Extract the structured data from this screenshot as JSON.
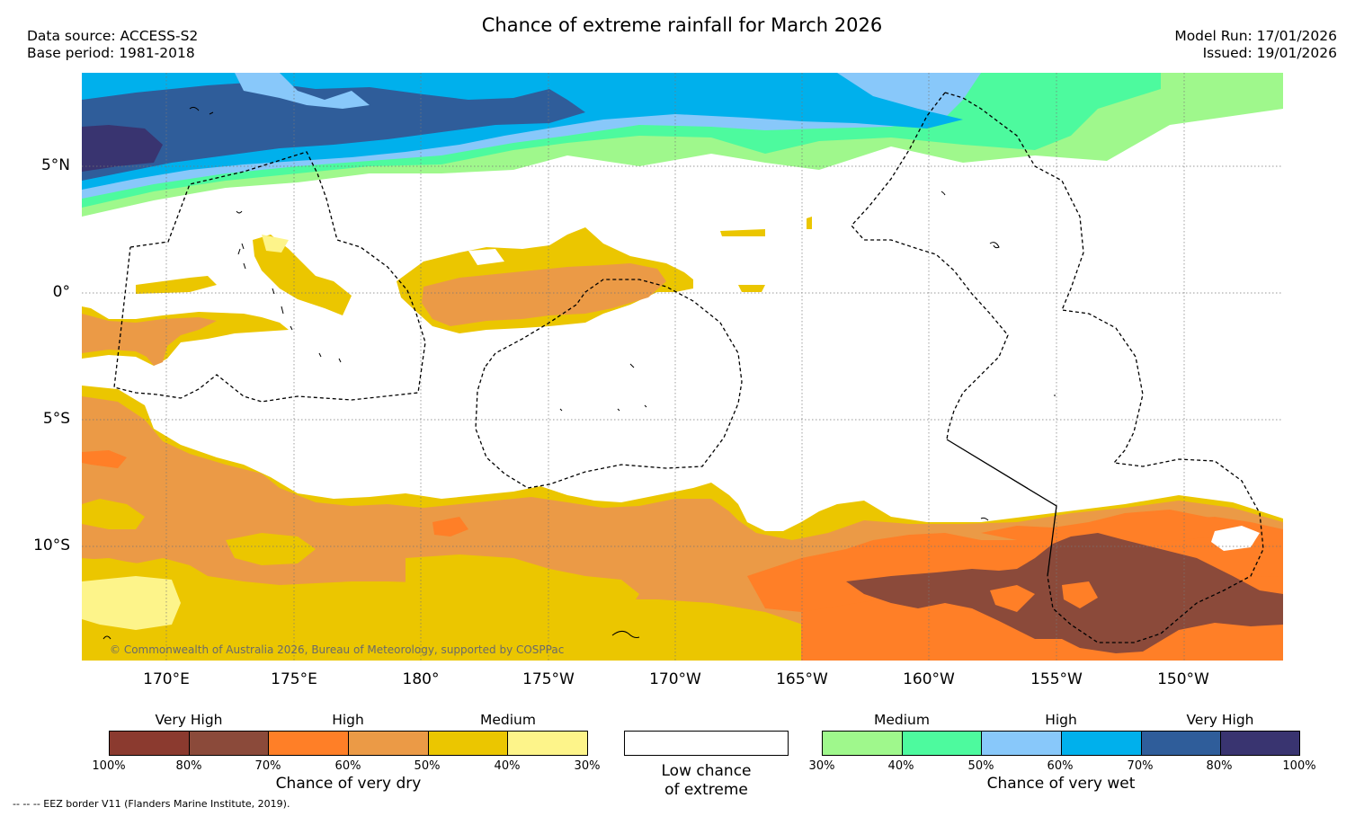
{
  "header": {
    "title": "Chance of extreme rainfall for March 2026",
    "data_source": "Data source: ACCESS-S2",
    "base_period": "Base period: 1981-2018",
    "model_run": "Model Run: 17/01/2026",
    "issued": "Issued: 19/01/2026"
  },
  "map": {
    "lat_labels": [
      "5°N",
      "0°",
      "5°S",
      "10°S"
    ],
    "lon_labels": [
      "170°E",
      "175°E",
      "180°",
      "175°W",
      "170°W",
      "165°W",
      "160°W",
      "155°W",
      "150°W"
    ],
    "copyright": "© Commonwealth of Australia 2026, Bureau of Meteorology, supported by COSPPac",
    "colors": {
      "dry_100_80": "#8b3a2f",
      "dry_80_70": "#8b4a3a",
      "dry_70_60": "#ff7f27",
      "dry_60_50": "#eb9a46",
      "dry_50_40": "#ebc600",
      "dry_40_30": "#fdf48a",
      "wet_30_40": "#9ff88c",
      "wet_40_50": "#4dfa9e",
      "wet_50_60": "#88c8fa",
      "wet_60_70": "#00b0ec",
      "wet_70_80": "#2f5d9a",
      "wet_80_100": "#393470"
    }
  },
  "legend": {
    "dry": {
      "categories": [
        "Very High",
        "High",
        "Medium"
      ],
      "ticks": [
        "100%",
        "80%",
        "70%",
        "60%",
        "50%",
        "40%",
        "30%"
      ],
      "title": "Chance of very dry",
      "colors": [
        "#8b3a2f",
        "#8b4a3a",
        "#ff7f27",
        "#eb9a46",
        "#ebc600",
        "#fdf48a"
      ]
    },
    "low": {
      "line1": "Low chance",
      "line2": "of extreme",
      "color": "#ffffff"
    },
    "wet": {
      "categories": [
        "Medium",
        "High",
        "Very High"
      ],
      "ticks": [
        "30%",
        "40%",
        "50%",
        "60%",
        "70%",
        "80%",
        "100%"
      ],
      "title": "Chance of very wet",
      "colors": [
        "#9ff88c",
        "#4dfa9e",
        "#88c8fa",
        "#00b0ec",
        "#2f5d9a",
        "#393470"
      ]
    }
  },
  "footnote": "--  --  -- EEZ border V11 (Flanders Marine Institute, 2019)."
}
